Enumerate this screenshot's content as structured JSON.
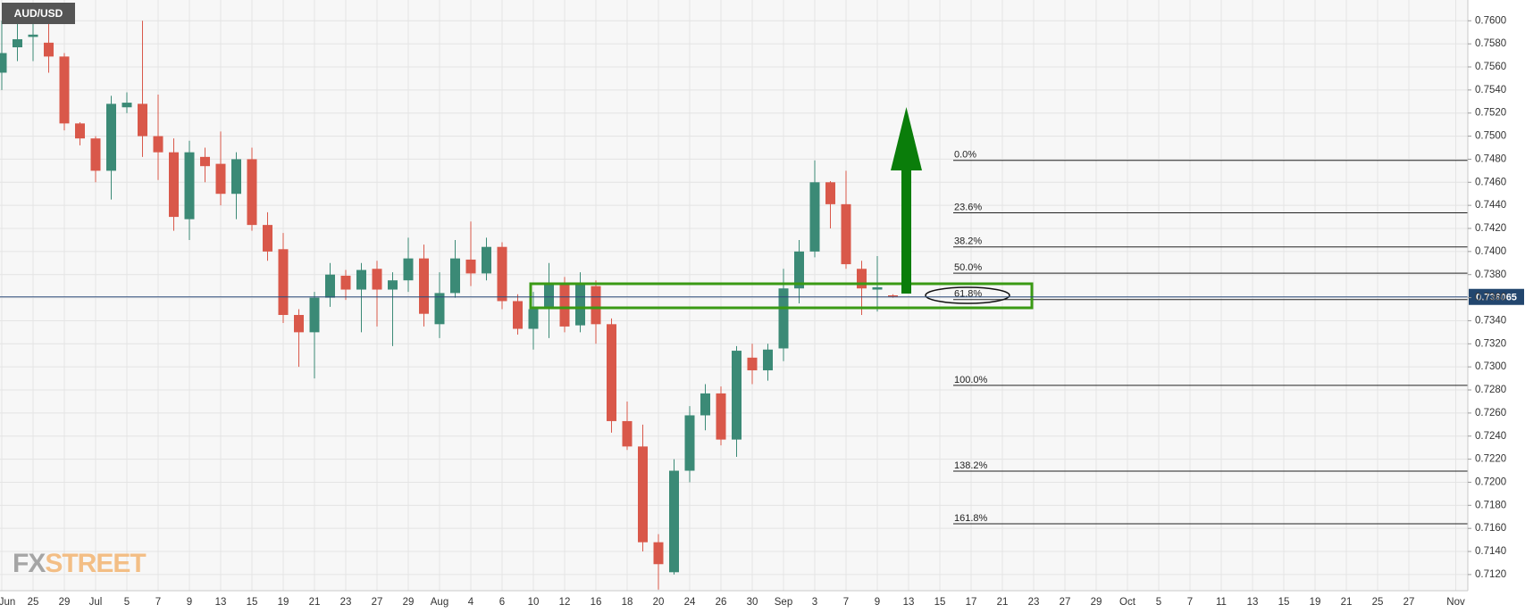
{
  "chart_data": {
    "type": "candlestick",
    "title": "AUD/USD",
    "watermark": {
      "part1": "FX",
      "part2": "STREET"
    },
    "up_color": "#3b8a76",
    "down_color": "#d9584a",
    "grid": true,
    "categories": [
      "Jun",
      null,
      "25",
      null,
      "29",
      null,
      "Jul",
      null,
      "5",
      null,
      "7",
      null,
      "9",
      null,
      "13",
      null,
      "15",
      null,
      "19",
      null,
      "21",
      null,
      "23",
      null,
      "27",
      null,
      "29",
      null,
      "Aug",
      null,
      "4",
      null,
      "6",
      null,
      "10",
      null,
      "12",
      null,
      "16",
      null,
      "18",
      null,
      "20",
      null,
      "24",
      null,
      "26",
      null,
      "30",
      null,
      "Sep",
      null,
      "3",
      null,
      "7",
      null,
      "9",
      null,
      "13",
      null,
      "15",
      null,
      "17",
      null,
      "21",
      null,
      "23",
      null,
      "27",
      null,
      "29",
      null,
      "Oct",
      null,
      "5",
      null,
      "7",
      null,
      "11",
      null,
      "13",
      null,
      "15",
      null,
      "19",
      null,
      "21",
      null,
      "25",
      null,
      "27",
      null,
      null,
      "Nov"
    ],
    "open": [
      0.7555,
      0.7577,
      0.7586,
      0.7581,
      0.7569,
      0.7511,
      0.7498,
      0.747,
      0.7525,
      0.7528,
      0.75,
      0.7486,
      0.7428,
      0.7482,
      0.7476,
      0.745,
      0.748,
      0.7423,
      0.7402,
      0.7345,
      0.733,
      0.736,
      0.7379,
      0.7367,
      0.7385,
      0.7367,
      0.7375,
      0.7394,
      0.7337,
      0.7364,
      0.7393,
      0.7381,
      0.7404,
      0.7357,
      0.7333,
      0.735,
      0.7371,
      0.7336,
      0.737,
      0.7337,
      0.7253,
      0.7231,
      0.7148,
      0.7122,
      0.721,
      0.7258,
      0.7277,
      0.7237,
      0.7308,
      0.7297,
      0.7316,
      0.7368,
      0.74,
      0.746,
      0.7441,
      0.7385,
      0.7367,
      0.7362,
      null,
      null,
      null,
      null,
      null,
      null,
      null,
      null,
      null,
      null,
      null,
      null,
      null,
      null,
      null,
      null,
      null,
      null,
      null,
      null,
      null,
      null,
      null,
      null,
      null,
      null,
      null,
      null,
      null,
      null,
      null,
      null,
      null,
      null,
      null,
      null
    ],
    "high": [
      0.76,
      0.76,
      0.7605,
      0.76,
      0.7572,
      0.7512,
      0.75,
      0.7535,
      0.7538,
      0.76,
      0.7536,
      0.7498,
      0.7496,
      0.749,
      0.7504,
      0.7486,
      0.749,
      0.7434,
      0.7416,
      0.735,
      0.7365,
      0.739,
      0.7384,
      0.739,
      0.7392,
      0.7382,
      0.7412,
      0.7406,
      0.7382,
      0.741,
      0.7426,
      0.7412,
      0.7408,
      0.7363,
      0.7365,
      0.739,
      0.7378,
      0.7382,
      0.7375,
      0.7342,
      0.727,
      0.725,
      0.7155,
      0.722,
      0.7266,
      0.7285,
      0.7283,
      0.7318,
      0.732,
      0.732,
      0.7385,
      0.741,
      0.7479,
      0.7461,
      0.747,
      0.7392,
      0.7396,
      0.7363,
      null,
      null,
      null,
      null,
      null,
      null,
      null,
      null,
      null,
      null,
      null,
      null,
      null,
      null,
      null,
      null,
      null,
      null,
      null,
      null,
      null,
      null,
      null,
      null,
      null,
      null,
      null,
      null,
      null,
      null,
      null,
      null,
      null,
      null,
      null,
      null
    ],
    "low": [
      0.754,
      0.7565,
      0.7565,
      0.7555,
      0.7505,
      0.7492,
      0.746,
      0.7445,
      0.752,
      0.7482,
      0.7462,
      0.7418,
      0.741,
      0.746,
      0.744,
      0.7428,
      0.7418,
      0.7392,
      0.7338,
      0.73,
      0.729,
      0.7352,
      0.7358,
      0.733,
      0.7335,
      0.7318,
      0.7365,
      0.7335,
      0.7325,
      0.736,
      0.737,
      0.7375,
      0.735,
      0.7328,
      0.7315,
      0.7325,
      0.733,
      0.733,
      0.732,
      0.7243,
      0.7228,
      0.714,
      0.7107,
      0.712,
      0.72,
      0.7245,
      0.7232,
      0.7222,
      0.7285,
      0.7288,
      0.7305,
      0.7355,
      0.7395,
      0.742,
      0.7385,
      0.7345,
      0.7348,
      0.736,
      null,
      null,
      null,
      null,
      null,
      null,
      null,
      null,
      null,
      null,
      null,
      null,
      null,
      null,
      null,
      null,
      null,
      null,
      null,
      null,
      null,
      null,
      null,
      null,
      null,
      null,
      null,
      null,
      null,
      null,
      null,
      null,
      null,
      null,
      null,
      null
    ],
    "close": [
      0.7572,
      0.7584,
      0.7588,
      0.7569,
      0.7511,
      0.7498,
      0.747,
      0.7528,
      0.7529,
      0.75,
      0.7486,
      0.743,
      0.7486,
      0.7474,
      0.745,
      0.748,
      0.7423,
      0.74,
      0.7345,
      0.733,
      0.736,
      0.738,
      0.7367,
      0.7384,
      0.7367,
      0.7375,
      0.7394,
      0.7346,
      0.7364,
      0.7394,
      0.7381,
      0.7404,
      0.7357,
      0.7333,
      0.735,
      0.7371,
      0.7335,
      0.7371,
      0.7337,
      0.7253,
      0.7231,
      0.7148,
      0.7129,
      0.721,
      0.7258,
      0.7277,
      0.7237,
      0.7314,
      0.7297,
      0.7315,
      0.7368,
      0.74,
      0.746,
      0.7441,
      0.7389,
      0.7368,
      0.7369,
      0.7361,
      null,
      null,
      null,
      null,
      null,
      null,
      null,
      null,
      null,
      null,
      null,
      null,
      null,
      null,
      null,
      null,
      null,
      null,
      null,
      null,
      null,
      null,
      null,
      null,
      null,
      null,
      null,
      null,
      null,
      null,
      null,
      null,
      null,
      null,
      null,
      null
    ],
    "ylim": [
      0.7106,
      0.7618
    ],
    "yticks": [
      {
        "value": 0.712,
        "label": "0.7120"
      },
      {
        "value": 0.714,
        "label": "0.7140"
      },
      {
        "value": 0.716,
        "label": "0.7160"
      },
      {
        "value": 0.718,
        "label": "0.7180"
      },
      {
        "value": 0.72,
        "label": "0.7200"
      },
      {
        "value": 0.722,
        "label": "0.7220"
      },
      {
        "value": 0.724,
        "label": "0.7240"
      },
      {
        "value": 0.726,
        "label": "0.7260"
      },
      {
        "value": 0.728,
        "label": "0.7280"
      },
      {
        "value": 0.73,
        "label": "0.7300"
      },
      {
        "value": 0.732,
        "label": "0.7320"
      },
      {
        "value": 0.734,
        "label": "0.7340"
      },
      {
        "value": 0.736,
        "label": "0.7360"
      },
      {
        "value": 0.738,
        "label": "0.7380"
      },
      {
        "value": 0.74,
        "label": "0.7400"
      },
      {
        "value": 0.742,
        "label": "0.7420"
      },
      {
        "value": 0.744,
        "label": "0.7440"
      },
      {
        "value": 0.746,
        "label": "0.7460"
      },
      {
        "value": 0.748,
        "label": "0.7480"
      },
      {
        "value": 0.75,
        "label": "0.7500"
      },
      {
        "value": 0.752,
        "label": "0.7520"
      },
      {
        "value": 0.754,
        "label": "0.7540"
      },
      {
        "value": 0.756,
        "label": "0.7560"
      },
      {
        "value": 0.758,
        "label": "0.7580"
      },
      {
        "value": 0.76,
        "label": "0.7600"
      }
    ],
    "fib_levels": [
      {
        "label": "0.0%",
        "value": 0.7479
      },
      {
        "label": "23.6%",
        "value": 0.74335
      },
      {
        "label": "38.2%",
        "value": 0.7404
      },
      {
        "label": "50.0%",
        "value": 0.73812
      },
      {
        "label": "61.8%",
        "value": 0.73583
      },
      {
        "label": "100.0%",
        "value": 0.7284
      },
      {
        "label": "138.2%",
        "value": 0.72096
      },
      {
        "label": "161.8%",
        "value": 0.7164
      }
    ],
    "current_price": 0.736065
  }
}
